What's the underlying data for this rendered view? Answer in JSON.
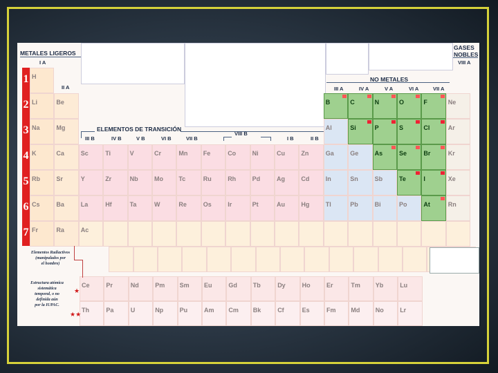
{
  "headers": {
    "metales_ligeros": "METALES LIGEROS",
    "no_metales": "NO METALES",
    "gases_nobles_1": "GASES",
    "gases_nobles_2": "NOBLES",
    "elementos_transicion": "ELEMENTOS DE TRANSICIÓN"
  },
  "groups": {
    "ia": "I A",
    "iia": "II A",
    "iiib": "III B",
    "ivb": "IV B",
    "vb": "V B",
    "vib": "VI B",
    "viib": "VII B",
    "viiib": "VIII B",
    "ib": "I B",
    "iib": "II B",
    "iiia": "III A",
    "iva": "IV A",
    "va": "V A",
    "via": "VI A",
    "viia": "VII A",
    "viiia": "VIII A"
  },
  "periods": [
    "1",
    "2",
    "3",
    "4",
    "5",
    "6",
    "7"
  ],
  "legend": {
    "radioactive_line1": "Elementos Radiactivos",
    "radioactive_line2": "(manipulados por",
    "radioactive_line3": "el hombre)",
    "iupac_line1": "Estructura atómica",
    "iupac_line2": "sistemática",
    "iupac_line3": "temporal, o no",
    "iupac_line4": "definida aún",
    "iupac_line5": "por la IUPAC."
  },
  "elements": {
    "H": "H",
    "Li": "Li",
    "Be": "Be",
    "Na": "Na",
    "Mg": "Mg",
    "K": "K",
    "Ca": "Ca",
    "Rb": "Rb",
    "Sr": "Sr",
    "Cs": "Cs",
    "Ba": "Ba",
    "Fr": "Fr",
    "Ra": "Ra",
    "Sc": "Sc",
    "Ti": "Ti",
    "V": "V",
    "Cr": "Cr",
    "Mn": "Mn",
    "Fe": "Fe",
    "Co": "Co",
    "Ni": "Ni",
    "Cu": "Cu",
    "Zn": "Zn",
    "Y": "Y",
    "Zr": "Zr",
    "Nb": "Nb",
    "Mo": "Mo",
    "Tc": "Tc",
    "Ru": "Ru",
    "Rh": "Rh",
    "Pd": "Pd",
    "Ag": "Ag",
    "Cd": "Cd",
    "La": "La",
    "Hf": "Hf",
    "Ta": "Ta",
    "W": "W",
    "Re": "Re",
    "Os": "Os",
    "Ir": "Ir",
    "Pt": "Pt",
    "Au": "Au",
    "Hg": "Hg",
    "Ac": "Ac",
    "B": "B",
    "C": "C",
    "N": "N",
    "O": "O",
    "F": "F",
    "Ne": "Ne",
    "Al": "Al",
    "Si": "Si",
    "P": "P",
    "S": "S",
    "Cl": "Cl",
    "Ar": "Ar",
    "Ga": "Ga",
    "Ge": "Ge",
    "As": "As",
    "Se": "Se",
    "Br": "Br",
    "Kr": "Kr",
    "In": "In",
    "Sn": "Sn",
    "Sb": "Sb",
    "Te": "Te",
    "I": "I",
    "Xe": "Xe",
    "Tl": "Tl",
    "Pb": "Pb",
    "Bi": "Bi",
    "Po": "Po",
    "At": "At",
    "Rn": "Rn",
    "Ce": "Ce",
    "Pr": "Pr",
    "Nd": "Nd",
    "Pm": "Pm",
    "Sm": "Sm",
    "Eu": "Eu",
    "Gd": "Gd",
    "Tb": "Tb",
    "Dy": "Dy",
    "Ho": "Ho",
    "Er": "Er",
    "Tm": "Tm",
    "Yb": "Yb",
    "Lu": "Lu",
    "Th": "Th",
    "Pa": "Pa",
    "U": "U",
    "Np": "Np",
    "Pu": "Pu",
    "Am": "Am",
    "Cm": "Cm",
    "Bk": "Bk",
    "Cf": "Cf",
    "Es": "Es",
    "Fm": "Fm",
    "Md": "Md",
    "No": "No",
    "Lr": "Lr"
  }
}
